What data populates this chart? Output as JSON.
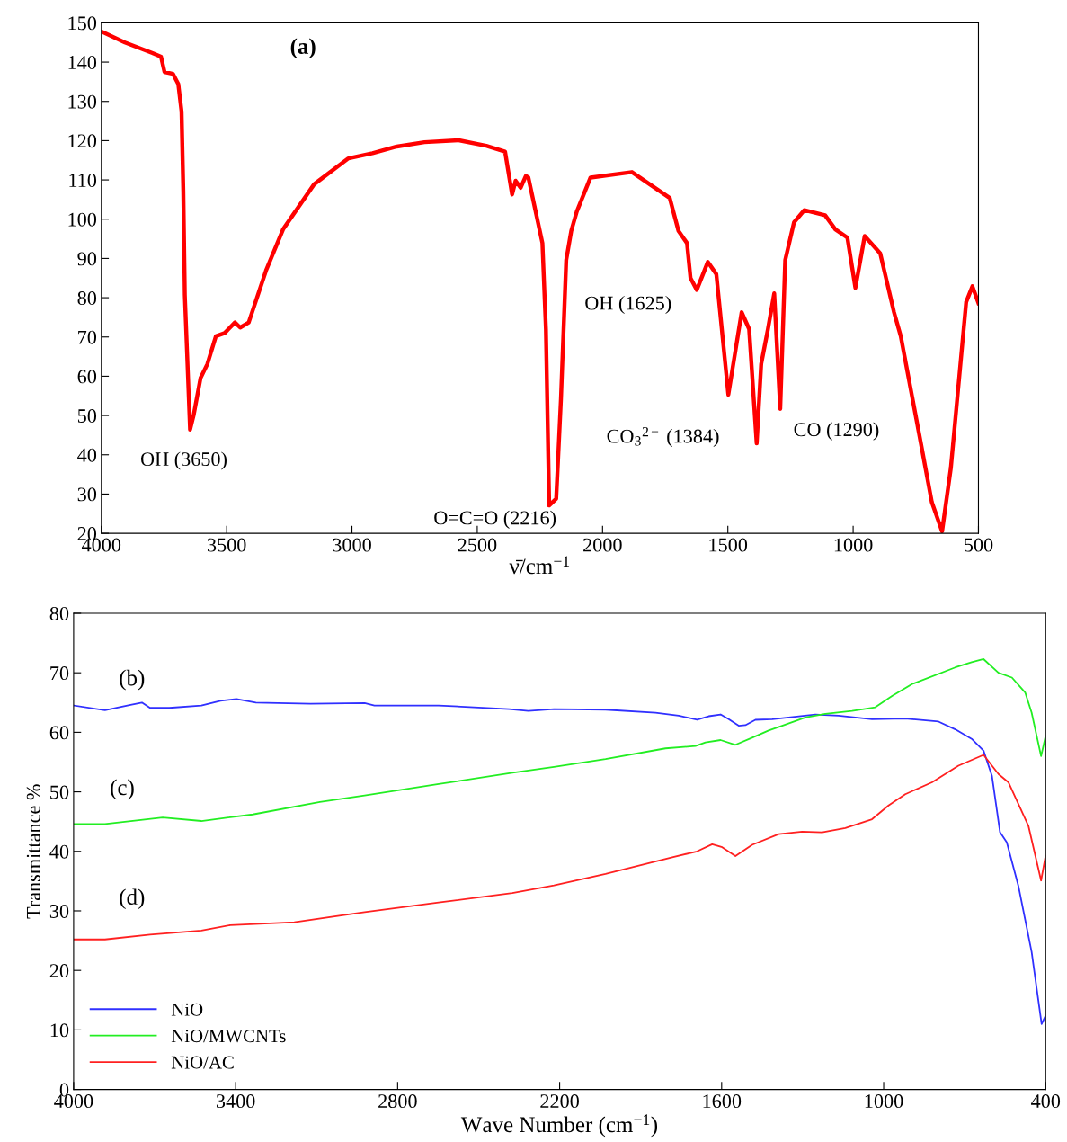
{
  "chart_data": [
    {
      "type": "line",
      "xlabel": "ν̄/cm$^{−1}$",
      "xlim": [
        4000,
        500
      ],
      "xticks": [
        4000,
        3500,
        3000,
        2500,
        2000,
        1500,
        1000,
        500
      ],
      "ylim": [
        20,
        150
      ],
      "yticks": [
        20,
        30,
        40,
        50,
        60,
        70,
        80,
        90,
        100,
        110,
        120,
        130,
        140,
        150
      ],
      "grid": false,
      "legend": false,
      "marker": "none",
      "line_style": "solid",
      "annotations": [
        "(a)",
        {
          "text": "OH (3650)",
          "x": 3646,
          "y": 46.4
        },
        {
          "text": "O=C=O (2216)",
          "x": 2205,
          "y": 27
        },
        {
          "text": "OH (1625)",
          "x": 1624,
          "y": 82
        },
        {
          "text": "CO$_{3}$$^{2−}$ (1384)",
          "x": 1385,
          "y": 42.9
        },
        {
          "text": "CO (1290)",
          "x": 1291,
          "y": 51.7
        }
      ],
      "series": [
        {
          "color": "#ff0000",
          "x": [
            4000,
            3906,
            3796,
            3762,
            3748,
            3714,
            3693,
            3680,
            3673,
            3667,
            3646,
            3632,
            3604,
            3577,
            3543,
            3508,
            3467,
            3446,
            3412,
            3343,
            3275,
            3151,
            3014,
            2918,
            2821,
            2711,
            2574,
            2464,
            2389,
            2361,
            2347,
            2327,
            2306,
            2296,
            2240,
            2226,
            2213,
            2185,
            2166,
            2145,
            2125,
            2103,
            2048,
            1883,
            1732,
            1697,
            1663,
            1649,
            1624,
            1580,
            1546,
            1498,
            1445,
            1415,
            1385,
            1367,
            1340,
            1315,
            1291,
            1271,
            1236,
            1195,
            1112,
            1071,
            1023,
            991,
            954,
            892,
            837,
            810,
            727,
            686,
            645,
            610,
            549,
            524,
            500
          ],
          "values": [
            147.8,
            145,
            142.3,
            141.4,
            137.5,
            137,
            134.4,
            127.4,
            107.2,
            80.7,
            46.4,
            50,
            59.6,
            63.1,
            70.2,
            71,
            73.7,
            72.4,
            73.7,
            86.9,
            97.4,
            108.9,
            115.5,
            116.8,
            118.5,
            119.6,
            120.1,
            118.7,
            117.2,
            106.3,
            109.8,
            108,
            111,
            110.6,
            93.9,
            72,
            27.1,
            28.8,
            54.3,
            89.6,
            97,
            101.9,
            110.6,
            112,
            105.4,
            97,
            93.9,
            85,
            82,
            89.1,
            86,
            55.3,
            76.3,
            72,
            42.9,
            63.1,
            72,
            81.1,
            51.7,
            89.6,
            99.2,
            102.3,
            101,
            97.4,
            95.3,
            82.5,
            95.7,
            91.3,
            76.3,
            70.2,
            42,
            27.9,
            20.5,
            36.7,
            78.9,
            82.9,
            78.6
          ]
        }
      ]
    },
    {
      "type": "line",
      "xlabel": "Wave Number (cm$^{−1}$)",
      "ylabel": "Transmittance %",
      "xlim": [
        4000,
        400
      ],
      "xticks": [
        4000,
        3400,
        2800,
        2200,
        1600,
        1000,
        400
      ],
      "ylim": [
        0,
        80
      ],
      "yticks": [
        0,
        10,
        20,
        30,
        40,
        50,
        60,
        70,
        80
      ],
      "grid": false,
      "legend": "bottom left",
      "marker": "none",
      "line_style": "solid",
      "annotations": [
        "(b)",
        "(c)",
        "(d)"
      ],
      "series": [
        {
          "name": "NiO",
          "color": "#3030ff",
          "x": [
            4000,
            3884,
            3789,
            3747,
            3717,
            3646,
            3527,
            3456,
            3397,
            3325,
            3123,
            2922,
            2886,
            2648,
            2387,
            2316,
            2221,
            2030,
            1845,
            1759,
            1691,
            1648,
            1604,
            1574,
            1537,
            1512,
            1475,
            1413,
            1352,
            1253,
            1167,
            1043,
            920,
            797,
            735,
            674,
            630,
            599,
            569,
            544,
            501,
            452,
            415,
            400
          ],
          "values": [
            64.5,
            63.7,
            64.6,
            65.0,
            64.1,
            64.1,
            64.5,
            65.3,
            65.6,
            65.0,
            64.8,
            64.9,
            64.5,
            64.5,
            63.9,
            63.6,
            63.9,
            63.8,
            63.3,
            62.8,
            62.1,
            62.7,
            63.0,
            62.2,
            61.1,
            61.2,
            62.1,
            62.2,
            62.5,
            63.0,
            62.8,
            62.2,
            62.3,
            61.8,
            60.5,
            58.9,
            56.9,
            52.7,
            43.2,
            41.5,
            34.2,
            23.1,
            11.0,
            12.4
          ]
        },
        {
          "name": "NiO/MWCNTs",
          "color": "#22ee22",
          "x": [
            4000,
            3884,
            3670,
            3527,
            3337,
            3088,
            2922,
            2648,
            2375,
            2221,
            2030,
            1808,
            1697,
            1660,
            1604,
            1549,
            1487,
            1426,
            1376,
            1290,
            1216,
            1117,
            1031,
            969,
            895,
            735,
            674,
            630,
            575,
            525,
            476,
            452,
            417,
            400
          ],
          "values": [
            44.6,
            44.6,
            45.7,
            45.1,
            46.2,
            48.3,
            49.4,
            51.3,
            53.2,
            54.2,
            55.5,
            57.3,
            57.7,
            58.3,
            58.7,
            57.9,
            59.1,
            60.3,
            61.1,
            62.5,
            63.1,
            63.6,
            64.2,
            66.1,
            68.1,
            70.9,
            71.8,
            72.3,
            70.0,
            69.2,
            66.7,
            63.3,
            56.0,
            59.4
          ]
        },
        {
          "name": "NiO/AC",
          "color": "#ff2020",
          "x": [
            4000,
            3884,
            3717,
            3527,
            3420,
            3183,
            2922,
            2648,
            2375,
            2221,
            2030,
            1783,
            1691,
            1635,
            1598,
            1549,
            1487,
            1389,
            1302,
            1228,
            1142,
            1043,
            982,
            920,
            821,
            723,
            630,
            575,
            538,
            464,
            417,
            400
          ],
          "values": [
            25.2,
            25.2,
            26.0,
            26.7,
            27.6,
            28.1,
            29.8,
            31.4,
            33.0,
            34.3,
            36.2,
            39.0,
            40.0,
            41.2,
            40.7,
            39.2,
            41.1,
            42.9,
            43.3,
            43.2,
            43.9,
            45.4,
            47.7,
            49.6,
            51.6,
            54.4,
            56.2,
            53.0,
            51.6,
            44.3,
            35.1,
            39.3
          ]
        }
      ]
    }
  ]
}
